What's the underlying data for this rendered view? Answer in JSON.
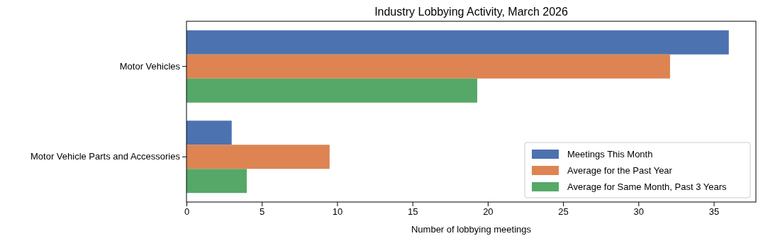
{
  "chart_data": {
    "type": "bar",
    "orientation": "horizontal",
    "title": "Industry Lobbying Activity, March 2026",
    "xlabel": "Number of lobbying meetings",
    "categories": [
      "Motor Vehicles",
      "Motor Vehicle Parts and Accessories"
    ],
    "series": [
      {
        "name": "Meetings This Month",
        "color": "#4c72b0",
        "values": [
          36,
          3
        ]
      },
      {
        "name": "Average for the Past Year",
        "color": "#dd8452",
        "values": [
          32.1,
          9.5
        ]
      },
      {
        "name": "Average for Same Month, Past 3 Years",
        "color": "#55a868",
        "values": [
          19.3,
          4
        ]
      }
    ],
    "xlim": [
      0,
      37.8
    ],
    "xticks": [
      0,
      5,
      10,
      15,
      20,
      25,
      30,
      35
    ],
    "grid": false,
    "legend": "bottom right"
  }
}
